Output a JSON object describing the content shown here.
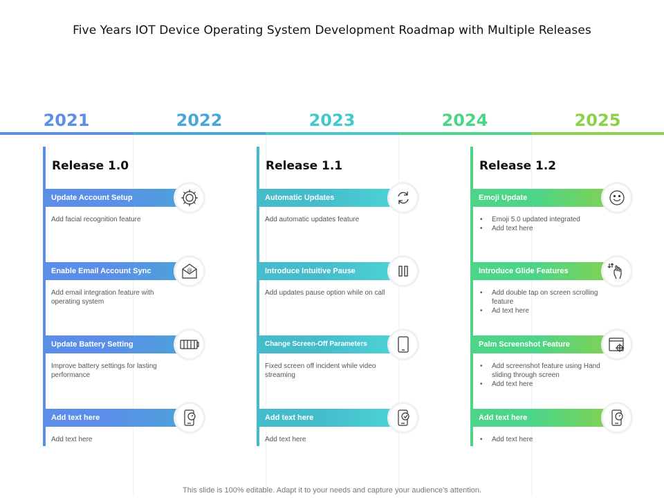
{
  "title": "Five Years IOT Device Operating System Development Roadmap with Multiple Releases",
  "colors": {
    "c2021": "#5b8ee8",
    "c2022": "#4aa5d8",
    "c2023": "#44c8cc",
    "c2024": "#4cd489",
    "c2025": "#8cd248"
  },
  "years": [
    "2021",
    "2022",
    "2023",
    "2024",
    "2025"
  ],
  "releases": [
    {
      "name": "Release 1.0",
      "items": [
        {
          "label": "Update Account Setup",
          "icon": "gear-icon",
          "desc": "Add facial recognition feature"
        },
        {
          "label": "Enable Email Account Sync",
          "icon": "email-icon",
          "desc": "Add email integration feature with operating system"
        },
        {
          "label": "Update Battery Setting",
          "icon": "battery-icon",
          "desc": "Improve battery settings for lasting performance"
        },
        {
          "label": "Add text here",
          "icon": "phone-speed-icon",
          "desc": "Add text here"
        }
      ]
    },
    {
      "name": "Release 1.1",
      "items": [
        {
          "label": "Automatic Updates",
          "icon": "refresh-icon",
          "desc": "Add automatic updates feature"
        },
        {
          "label": "Introduce Intuitive Pause",
          "icon": "pause-icon",
          "desc": "Add updates pause option while on call"
        },
        {
          "label": "Change Screen-Off Parameters",
          "icon": "tablet-icon",
          "desc": "Fixed screen off incident while video streaming"
        },
        {
          "label": "Add text here",
          "icon": "phone-check-icon",
          "desc": "Add text here"
        }
      ]
    },
    {
      "name": "Release 1.2",
      "items": [
        {
          "label": "Emoji Update",
          "icon": "smiley-icon",
          "bullets": [
            "Emoji  5.0 updated integrated",
            "Add text here"
          ]
        },
        {
          "label": "Introduce Glide Features",
          "icon": "swipe-hand-icon",
          "bullets": [
            "Add double tap on screen scrolling feature",
            "Ad text here"
          ]
        },
        {
          "label": "Palm Screenshot Feature",
          "icon": "screenshot-icon",
          "bullets": [
            "Add screenshot feature using Hand sliding through screen",
            "Add text here"
          ]
        },
        {
          "label": "Add text here",
          "icon": "phone-speed-icon",
          "bullets": [
            "Add text here"
          ]
        }
      ]
    }
  ],
  "footer": "This slide is 100% editable. Adapt it to your needs and capture your audience's attention."
}
